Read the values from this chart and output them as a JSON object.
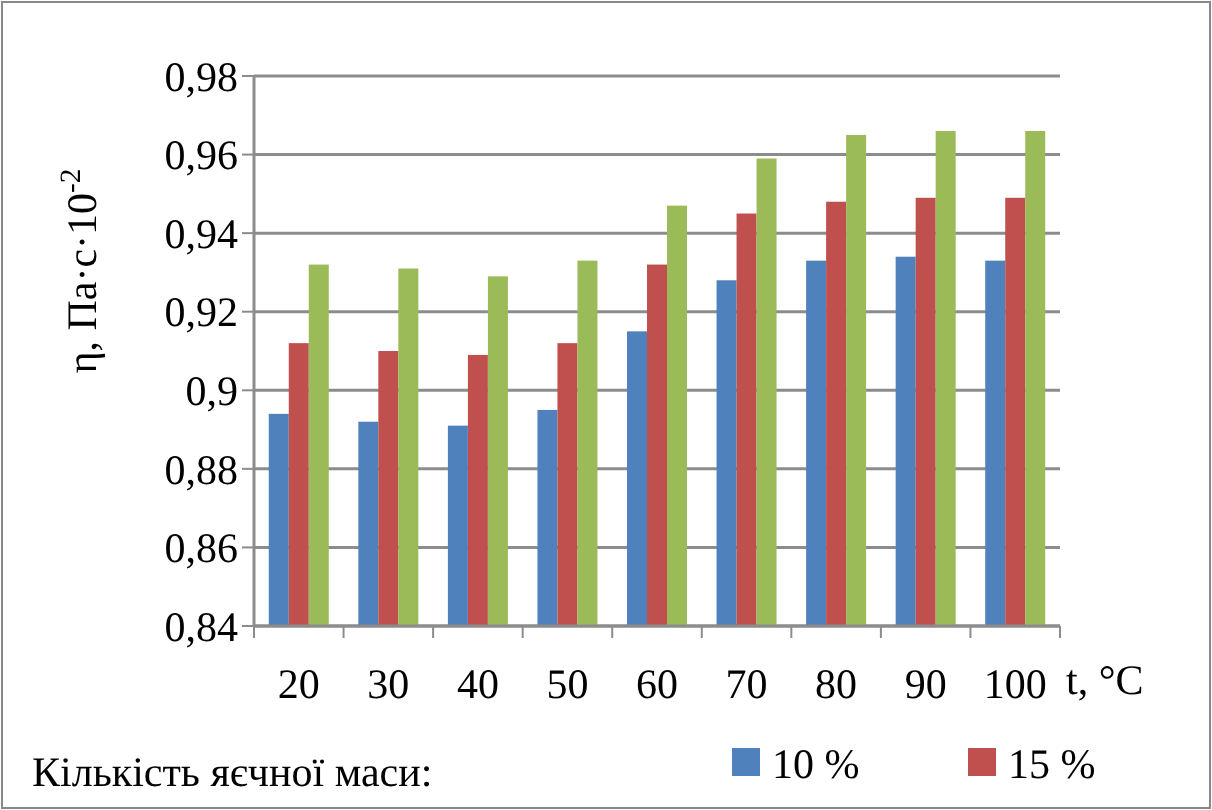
{
  "chart_data": {
    "type": "bar",
    "categories": [
      "20",
      "30",
      "40",
      "50",
      "60",
      "70",
      "80",
      "90",
      "100"
    ],
    "series": [
      {
        "name": "10 %",
        "color": "#4f81bd",
        "values": [
          0.894,
          0.892,
          0.891,
          0.895,
          0.915,
          0.928,
          0.933,
          0.934,
          0.933
        ]
      },
      {
        "name": "15 %",
        "color": "#c0504d",
        "values": [
          0.912,
          0.91,
          0.909,
          0.912,
          0.932,
          0.945,
          0.948,
          0.949,
          0.949
        ]
      },
      {
        "color": "#9bbb59",
        "values": [
          0.932,
          0.931,
          0.929,
          0.933,
          0.947,
          0.959,
          0.965,
          0.966,
          0.966
        ]
      }
    ],
    "ylim": [
      0.84,
      0.98
    ],
    "yticks": [
      {
        "value": 0.84,
        "label": "0,84"
      },
      {
        "value": 0.86,
        "label": "0,86"
      },
      {
        "value": 0.88,
        "label": "0,88"
      },
      {
        "value": 0.9,
        "label": "0,9"
      },
      {
        "value": 0.92,
        "label": "0,92"
      },
      {
        "value": 0.94,
        "label": "0,94"
      },
      {
        "value": 0.96,
        "label": "0,96"
      },
      {
        "value": 0.98,
        "label": "0,98"
      }
    ],
    "xlabel": "t, °C",
    "ylabel": "η, Па·с·10$^{-2}$",
    "legend_title": "Кількість яєчної маси:",
    "legend": "bottom",
    "grid": "y"
  }
}
